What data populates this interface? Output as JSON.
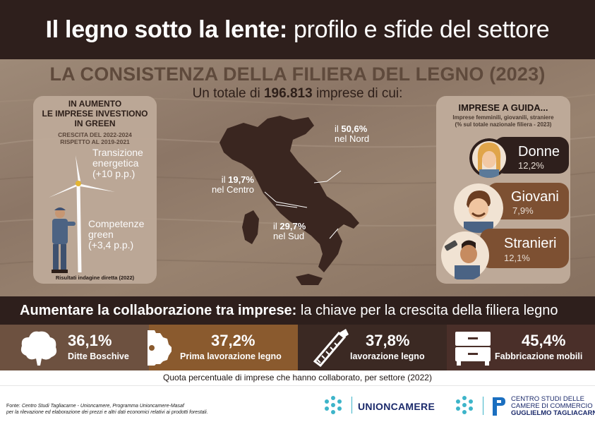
{
  "header": {
    "title_bold": "Il legno sotto la lente:",
    "title_light": "profilo e sfide del settore"
  },
  "hero": {
    "title": "LA CONSISTENZA DELLA FILIERA DEL LEGNO (2023)",
    "subtitle_prefix": "Un totale di",
    "subtitle_value": "196.813",
    "subtitle_suffix": "imprese di cui:"
  },
  "left_panel": {
    "heading_1": "IN AUMENTO",
    "heading_2": "LE IMPRESE INVESTIONO",
    "heading_3": "IN GREEN",
    "sub_1": "CRESCITA DEL 2022-2024",
    "sub_2": "RISPETTO AL 2019-2021",
    "metric1_line1": "Transizione",
    "metric1_line2": "energetica",
    "metric1_line3": "(+10 p.p.)",
    "metric2_line1": "Competenze",
    "metric2_line2": "green",
    "metric2_line3": "(+3,4 p.p.)",
    "note": "Risultati indagine diretta (2022)"
  },
  "map": {
    "north_prefix": "il",
    "north_value": "50,6%",
    "north_label": "nel Nord",
    "center_prefix": "il",
    "center_value": "19,7%",
    "center_label": "nel Centro",
    "south_prefix": "il",
    "south_value": "29,7%",
    "south_label": "nel Sud"
  },
  "right_panel": {
    "heading": "IMPRESE A GUIDA...",
    "sub_1": "Imprese femminili, giovanili, straniere",
    "sub_2": "(% sul totale nazionale filiera - 2023)",
    "items": [
      {
        "label": "Donne",
        "value": "12,2%",
        "color": "#2e1f1c"
      },
      {
        "label": "Giovani",
        "value": "7,9%",
        "color": "#7d5032"
      },
      {
        "label": "Stranieri",
        "value": "12,1%",
        "color": "#7d5032"
      }
    ]
  },
  "collab": {
    "title_bold": "Aumentare la collaborazione tra imprese:",
    "title_light": "la chiave per la crescita della filiera legno"
  },
  "sectors": [
    {
      "value": "36,1%",
      "name": "Ditte Boschive",
      "color": "#6d5140"
    },
    {
      "value": "37,2%",
      "name": "Prima lavorazione legno",
      "color": "#8a5a2e"
    },
    {
      "value": "37,8%",
      "name": "lavorazione legno",
      "color": "#3b2923"
    },
    {
      "value": "45,4%",
      "name": "Fabbricazione mobili",
      "color": "#4a2f29"
    }
  ],
  "quota_note": "Quota percentuale di imprese che hanno collaborato, per settore (2022)",
  "footer": {
    "source_label": "Fonte:",
    "source_1": "Centro Studi Tagliacarne - Unioncamere, Programma Unioncamere-Masaf",
    "source_2": "per la rilevazione ed elaborazione dei prezzi e altri dati economici relativi ai prodotti forestali.",
    "unioncamere": "UNIONCAMERE",
    "tag_1": "CENTRO STUDI DELLE",
    "tag_2": "CAMERE DI COMMERCIO",
    "tag_3": "GUGLIELMO TAGLIACARNE"
  },
  "icons": {
    "tree": "tree-icon",
    "saw_blade": "saw-blade-icon",
    "hand_saw": "hand-saw-icon",
    "cabinet": "cabinet-icon",
    "wind_turbine": "wind-turbine-icon",
    "worker": "worker-icon",
    "italy_map": "italy-map"
  }
}
